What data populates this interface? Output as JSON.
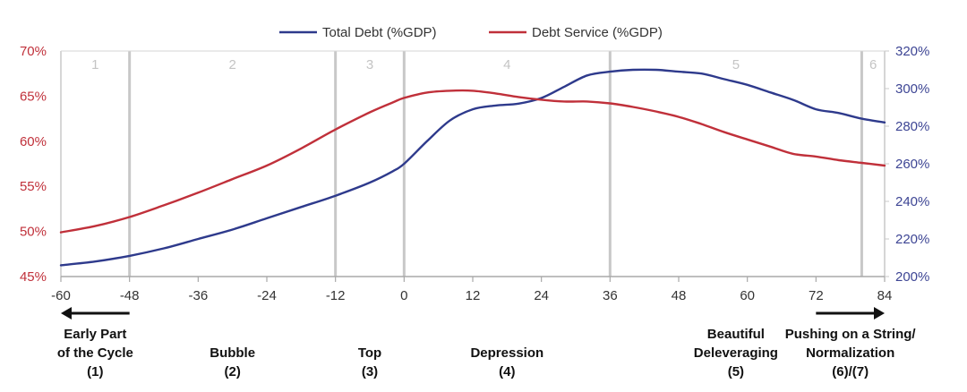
{
  "chart_data": {
    "type": "line",
    "title": "",
    "xlabel": "",
    "ylabel": "",
    "xlim": [
      -60,
      84
    ],
    "xticks": [
      -60,
      -48,
      -36,
      -24,
      -12,
      0,
      12,
      24,
      36,
      48,
      60,
      72,
      84
    ],
    "y_left": {
      "range": [
        45,
        70
      ],
      "ticks": [
        45,
        50,
        55,
        60,
        65,
        70
      ],
      "unit": "%",
      "color": "#c0303a"
    },
    "y_right": {
      "range": [
        200,
        320
      ],
      "ticks": [
        200,
        220,
        240,
        260,
        280,
        300,
        320
      ],
      "unit": "%",
      "color": "#3d4594"
    },
    "grid": {
      "vertical_ticks": true,
      "horizontal": false
    },
    "legend_position": "top-center",
    "series": [
      {
        "name": "Total Debt (%GDP)",
        "axis": "right",
        "color": "#2e3a8c",
        "x": [
          -60,
          -54,
          -48,
          -42,
          -36,
          -30,
          -24,
          -18,
          -12,
          -6,
          -2,
          0,
          4,
          8,
          12,
          16,
          20,
          24,
          28,
          32,
          36,
          40,
          44,
          48,
          52,
          56,
          60,
          64,
          68,
          72,
          76,
          80,
          84
        ],
        "values": [
          206,
          208,
          211,
          215,
          220,
          225,
          231,
          237,
          243,
          250,
          256,
          260,
          272,
          283,
          289,
          291,
          292,
          295,
          301,
          307,
          309,
          310,
          310,
          309,
          308,
          305,
          302,
          298,
          294,
          289,
          287,
          284,
          282
        ]
      },
      {
        "name": "Debt Service (%GDP)",
        "axis": "left",
        "color": "#c0303a",
        "x": [
          -60,
          -54,
          -48,
          -42,
          -36,
          -30,
          -24,
          -18,
          -12,
          -6,
          -2,
          0,
          4,
          8,
          12,
          16,
          20,
          24,
          28,
          32,
          36,
          40,
          44,
          48,
          52,
          56,
          60,
          64,
          68,
          72,
          76,
          80,
          84
        ],
        "values": [
          49.9,
          50.6,
          51.6,
          52.9,
          54.3,
          55.8,
          57.3,
          59.2,
          61.3,
          63.2,
          64.3,
          64.8,
          65.4,
          65.6,
          65.6,
          65.3,
          64.9,
          64.6,
          64.4,
          64.4,
          64.2,
          63.8,
          63.3,
          62.7,
          61.9,
          61.0,
          60.2,
          59.4,
          58.6,
          58.3,
          57.9,
          57.6,
          57.3
        ]
      }
    ],
    "phase_lines": [
      -48,
      -12,
      0,
      36,
      80
    ],
    "phases": [
      {
        "number": "1",
        "x": -54
      },
      {
        "number": "2",
        "x": -30
      },
      {
        "number": "3",
        "x": -6
      },
      {
        "number": "4",
        "x": 18
      },
      {
        "number": "5",
        "x": 58
      },
      {
        "number": "6",
        "x": 82
      }
    ],
    "stage_labels": [
      {
        "lines": [
          "Early Part",
          "of the Cycle",
          "(1)"
        ],
        "x": -54
      },
      {
        "lines": [
          "Bubble",
          "(2)"
        ],
        "x": -30
      },
      {
        "lines": [
          "Top",
          "(3)"
        ],
        "x": -6
      },
      {
        "lines": [
          "Depression",
          "(4)"
        ],
        "x": 18
      },
      {
        "lines": [
          "Beautiful",
          "Deleveraging",
          "(5)"
        ],
        "x": 58
      },
      {
        "lines": [
          "Pushing on a String/",
          "Normalization",
          "(6)/(7)"
        ],
        "x": 78
      }
    ],
    "arrows": [
      {
        "direction": "left",
        "from": -48,
        "to": -60
      },
      {
        "direction": "right",
        "from": 72,
        "to": 84
      }
    ]
  }
}
